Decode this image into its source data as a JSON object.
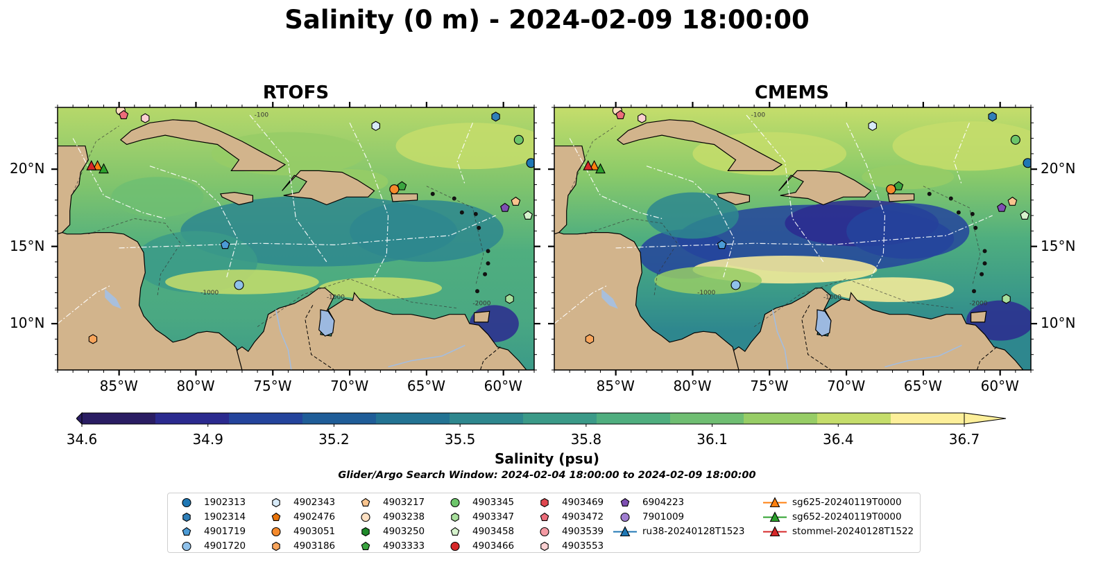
{
  "title": "Salinity (0 m) - 2024-02-09 18:00:00",
  "panels": [
    {
      "title": "RTOFS",
      "model": "rtofs"
    },
    {
      "title": "CMEMS",
      "model": "cmems"
    }
  ],
  "axes": {
    "lon_ticks": [
      -85,
      -80,
      -75,
      -70,
      -65,
      -60
    ],
    "lon_labels": [
      "85°W",
      "80°W",
      "75°W",
      "70°W",
      "65°W",
      "60°W"
    ],
    "lat_ticks": [
      10,
      15,
      20
    ],
    "lat_labels": [
      "10°N",
      "15°N",
      "20°N"
    ],
    "lon_range": [
      -89,
      -58
    ],
    "lat_range": [
      7,
      24
    ]
  },
  "colorbar": {
    "min": 34.6,
    "max": 36.7,
    "ticks": [
      "34.6",
      "34.9",
      "35.2",
      "35.5",
      "35.8",
      "36.1",
      "36.4",
      "36.7"
    ],
    "label": "Salinity (psu)",
    "colors": [
      "#2a1d63",
      "#2b2a8f",
      "#24449c",
      "#1f5d98",
      "#237393",
      "#2e878e",
      "#3b9a88",
      "#4fae7f",
      "#6fbe72",
      "#97cd66",
      "#c5dd6b",
      "#fdef9a"
    ]
  },
  "search_window": "Glider/Argo Search Window: 2024-02-04 18:00:00 to 2024-02-09 18:00:00",
  "contour_labels": [
    "-100",
    "-1000",
    "-1000",
    "-2000"
  ],
  "legend": {
    "columns": [
      [
        {
          "label": "1902313",
          "marker": "circle",
          "color": "#1f77b4"
        },
        {
          "label": "1902314",
          "marker": "hexagon",
          "color": "#2f7fb8"
        },
        {
          "label": "4901719",
          "marker": "pentagon",
          "color": "#4c9bd6"
        },
        {
          "label": "4901720",
          "marker": "circle",
          "color": "#8fc1ea"
        }
      ],
      [
        {
          "label": "4902343",
          "marker": "hexagon",
          "color": "#d7eaf8"
        },
        {
          "label": "4902476",
          "marker": "pentagon",
          "color": "#e8740c"
        },
        {
          "label": "4903051",
          "marker": "circle",
          "color": "#f58a2c"
        },
        {
          "label": "4903186",
          "marker": "hexagon",
          "color": "#f8a55c"
        }
      ],
      [
        {
          "label": "4903217",
          "marker": "pentagon",
          "color": "#f9c48e"
        },
        {
          "label": "4903238",
          "marker": "circle",
          "color": "#fde0c2"
        },
        {
          "label": "4903250",
          "marker": "hexagon",
          "color": "#1f8a2a"
        },
        {
          "label": "4903333",
          "marker": "pentagon",
          "color": "#3aa43f"
        }
      ],
      [
        {
          "label": "4903345",
          "marker": "circle",
          "color": "#6cc56a"
        },
        {
          "label": "4903347",
          "marker": "hexagon",
          "color": "#a8df9c"
        },
        {
          "label": "4903458",
          "marker": "pentagon",
          "color": "#d6f3cd"
        },
        {
          "label": "4903466",
          "marker": "circle",
          "color": "#d62728"
        }
      ],
      [
        {
          "label": "4903469",
          "marker": "hexagon",
          "color": "#e0474f"
        },
        {
          "label": "4903472",
          "marker": "pentagon",
          "color": "#ec6d7a"
        },
        {
          "label": "4903539",
          "marker": "circle",
          "color": "#f49aa3"
        },
        {
          "label": "4903553",
          "marker": "hexagon",
          "color": "#fbd0d2"
        }
      ],
      [
        {
          "label": "6904223",
          "marker": "pentagon",
          "color": "#7e4fb2"
        },
        {
          "label": "7901009",
          "marker": "circle",
          "color": "#a07ed0"
        },
        {
          "label": "ru38-20240128T1523",
          "marker": "triangle-line",
          "color": "#1f77b4"
        }
      ],
      [
        {
          "label": "sg625-20240119T0000",
          "marker": "triangle-line",
          "color": "#ff7f0e"
        },
        {
          "label": "sg652-20240119T0000",
          "marker": "triangle-line",
          "color": "#2ca02c"
        },
        {
          "label": "stommel-20240128T1522",
          "marker": "triangle-line",
          "color": "#d62728"
        }
      ]
    ]
  },
  "platforms": [
    {
      "id": "1902313",
      "marker": "circle",
      "color": "#1f77b4",
      "lon": -58.2,
      "lat": 20.4
    },
    {
      "id": "1902314",
      "marker": "hexagon",
      "color": "#2f7fb8",
      "lon": -60.5,
      "lat": 23.4
    },
    {
      "id": "4901719",
      "marker": "pentagon",
      "color": "#4c9bd6",
      "lon": -78.1,
      "lat": 15.1
    },
    {
      "id": "4901720",
      "marker": "circle",
      "color": "#8fc1ea",
      "lon": -77.2,
      "lat": 12.5
    },
    {
      "id": "4902343",
      "marker": "hexagon",
      "color": "#d7eaf8",
      "lon": -68.3,
      "lat": 22.8
    },
    {
      "id": "4903051",
      "marker": "circle",
      "color": "#f58a2c",
      "lon": -67.1,
      "lat": 18.7
    },
    {
      "id": "4903186",
      "marker": "hexagon",
      "color": "#f8a55c",
      "lon": -86.7,
      "lat": 9.0
    },
    {
      "id": "4903217",
      "marker": "pentagon",
      "color": "#f9c48e",
      "lon": -59.2,
      "lat": 17.9
    },
    {
      "id": "4903238",
      "marker": "circle",
      "color": "#fde0c2",
      "lon": -84.9,
      "lat": 23.8
    },
    {
      "id": "4903333",
      "marker": "pentagon",
      "color": "#3aa43f",
      "lon": -66.6,
      "lat": 18.9
    },
    {
      "id": "4903345",
      "marker": "circle",
      "color": "#6cc56a",
      "lon": -59.0,
      "lat": 21.9
    },
    {
      "id": "4903347",
      "marker": "hexagon",
      "color": "#a8df9c",
      "lon": -59.6,
      "lat": 11.6
    },
    {
      "id": "4903458",
      "marker": "pentagon",
      "color": "#d6f3cd",
      "lon": -58.4,
      "lat": 17.0
    },
    {
      "id": "4903472",
      "marker": "pentagon",
      "color": "#ec6d7a",
      "lon": -84.7,
      "lat": 23.5
    },
    {
      "id": "4903553",
      "marker": "hexagon",
      "color": "#fbd0d2",
      "lon": -83.3,
      "lat": 23.3
    },
    {
      "id": "6904223",
      "marker": "pentagon",
      "color": "#7e4fb2",
      "lon": -59.9,
      "lat": 17.5
    },
    {
      "id": "sg625-20240119T0000",
      "marker": "triangle",
      "color": "#ff7f0e",
      "lon": -86.4,
      "lat": 20.2
    },
    {
      "id": "sg652-20240119T0000",
      "marker": "triangle",
      "color": "#2ca02c",
      "lon": -86.0,
      "lat": 20.0
    },
    {
      "id": "stommel-20240128T1522",
      "marker": "triangle",
      "color": "#d62728",
      "lon": -86.8,
      "lat": 20.2
    }
  ]
}
